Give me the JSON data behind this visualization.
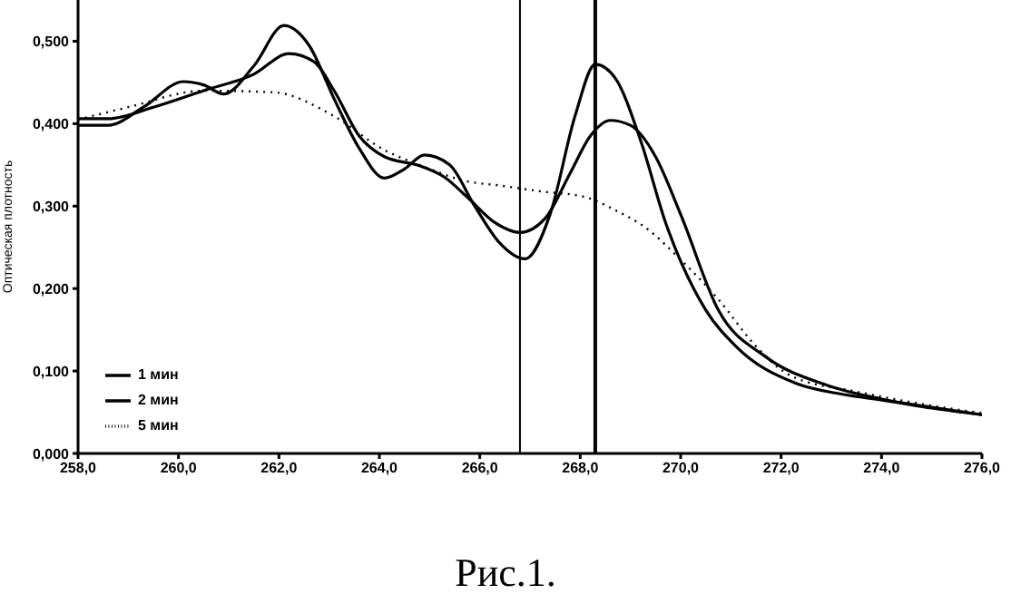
{
  "chart_data": {
    "type": "line",
    "ylabel": "Оптическая плотность",
    "annotations": [
      "Рис.1."
    ],
    "xlim": [
      258,
      276
    ],
    "xticks": [
      {
        "value": 258,
        "label": "258,0"
      },
      {
        "value": 260,
        "label": "260,0"
      },
      {
        "value": 262,
        "label": "262,0"
      },
      {
        "value": 264,
        "label": "264,0"
      },
      {
        "value": 266,
        "label": "266,0"
      },
      {
        "value": 268,
        "label": "268,0"
      },
      {
        "value": 270,
        "label": "270,0"
      },
      {
        "value": 272,
        "label": "272,0"
      },
      {
        "value": 274,
        "label": "274,0"
      },
      {
        "value": 276,
        "label": "276,0"
      }
    ],
    "ylim": [
      0,
      0.55
    ],
    "yticks": [
      {
        "value": 0,
        "label": "0,000"
      },
      {
        "value": 0.1,
        "label": "0,100"
      },
      {
        "value": 0.2,
        "label": "0,200"
      },
      {
        "value": 0.3,
        "label": "0,300"
      },
      {
        "value": 0.4,
        "label": "0,400"
      },
      {
        "value": 0.5,
        "label": "0,500"
      }
    ],
    "grid": false,
    "legend": "left",
    "marker": "none",
    "ref_lines": [
      {
        "axis": "x",
        "value": 266.8,
        "color": "#000000"
      },
      {
        "axis": "x",
        "value": 268.3,
        "color": "#000000"
      }
    ],
    "series": [
      {
        "name": "1 мин",
        "color": "#000000",
        "line_style": "solid",
        "x": [
          258,
          258.6,
          259.3,
          260.1,
          260.5,
          260.9,
          261.5,
          262.1,
          262.6,
          263.1,
          263.6,
          264.1,
          264.5,
          264.9,
          265.4,
          265.9,
          266.4,
          266.9,
          267.4,
          267.9,
          268.3,
          268.7,
          269.2,
          269.7,
          270.5,
          271.1,
          272.3,
          273.2,
          274.1,
          275,
          276
        ],
        "values": [
          0.398,
          0.398,
          0.42,
          0.451,
          0.447,
          0.436,
          0.47,
          0.519,
          0.495,
          0.43,
          0.37,
          0.334,
          0.345,
          0.362,
          0.35,
          0.3,
          0.255,
          0.236,
          0.29,
          0.41,
          0.472,
          0.455,
          0.38,
          0.28,
          0.174,
          0.13,
          0.085,
          0.072,
          0.064,
          0.055,
          0.047
        ]
      },
      {
        "name": "2 мин",
        "color": "#000000",
        "line_style": "solid",
        "x": [
          258,
          258.6,
          259.5,
          260.5,
          261.5,
          262.2,
          262.7,
          263.1,
          263.6,
          264.1,
          264.8,
          265.3,
          265.75,
          266.3,
          266.8,
          267.3,
          267.8,
          268.2,
          268.6,
          269,
          269.5,
          270,
          270.75,
          271.7,
          272.9,
          274,
          275,
          276
        ],
        "values": [
          0.406,
          0.406,
          0.42,
          0.44,
          0.46,
          0.485,
          0.475,
          0.44,
          0.385,
          0.36,
          0.349,
          0.335,
          0.311,
          0.28,
          0.268,
          0.285,
          0.34,
          0.385,
          0.404,
          0.398,
          0.36,
          0.29,
          0.174,
          0.117,
          0.083,
          0.066,
          0.056,
          0.047
        ]
      },
      {
        "name": "5 мин",
        "color": "#000000",
        "line_style": "dotted",
        "x": [
          258,
          259,
          260.5,
          261.9,
          263.1,
          264.1,
          264.8,
          265.75,
          266.4,
          267.2,
          268.1,
          268.7,
          269.3,
          270,
          270.75,
          271.5,
          272.2,
          273.5,
          274.8,
          276
        ],
        "values": [
          0.405,
          0.42,
          0.44,
          0.438,
          0.409,
          0.368,
          0.35,
          0.33,
          0.325,
          0.318,
          0.311,
          0.295,
          0.274,
          0.235,
          0.187,
          0.13,
          0.094,
          0.075,
          0.06,
          0.049
        ]
      }
    ]
  }
}
